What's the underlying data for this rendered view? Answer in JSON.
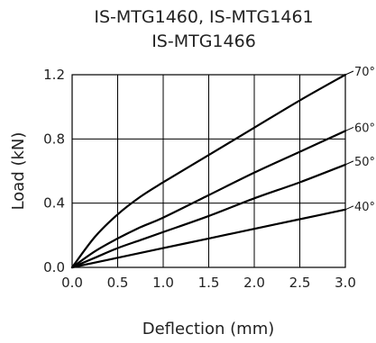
{
  "chart_data": {
    "type": "line",
    "title": [
      "IS-MTG1460, IS-MTG1461",
      "IS-MTG1466"
    ],
    "xlabel": "Deflection (mm)",
    "ylabel": "Load (kN)",
    "xlim": [
      0,
      3.0
    ],
    "ylim": [
      0,
      1.2
    ],
    "x_ticks": [
      "0.0",
      "0.5",
      "1.0",
      "1.5",
      "2.0",
      "2.5",
      "3.0"
    ],
    "y_ticks": [
      "0.0",
      "0.4",
      "0.8",
      "1.2"
    ],
    "grid": true,
    "series": [
      {
        "name": "70°",
        "x": [
          0,
          0.25,
          0.5,
          0.75,
          1.0,
          1.5,
          2.0,
          2.5,
          3.0
        ],
        "y": [
          0,
          0.19,
          0.33,
          0.44,
          0.53,
          0.7,
          0.87,
          1.04,
          1.2
        ]
      },
      {
        "name": "60°",
        "x": [
          0,
          0.25,
          0.5,
          0.75,
          1.0,
          1.5,
          2.0,
          2.5,
          3.0
        ],
        "y": [
          0,
          0.1,
          0.18,
          0.25,
          0.31,
          0.45,
          0.59,
          0.72,
          0.85
        ]
      },
      {
        "name": "50°",
        "x": [
          0,
          0.25,
          0.5,
          0.75,
          1.0,
          1.5,
          2.0,
          2.5,
          3.0
        ],
        "y": [
          0,
          0.06,
          0.12,
          0.17,
          0.22,
          0.32,
          0.43,
          0.53,
          0.64
        ]
      },
      {
        "name": "40°",
        "x": [
          0,
          0.5,
          1.0,
          1.5,
          2.0,
          2.5,
          3.0
        ],
        "y": [
          0,
          0.06,
          0.12,
          0.18,
          0.24,
          0.3,
          0.36
        ]
      }
    ]
  }
}
